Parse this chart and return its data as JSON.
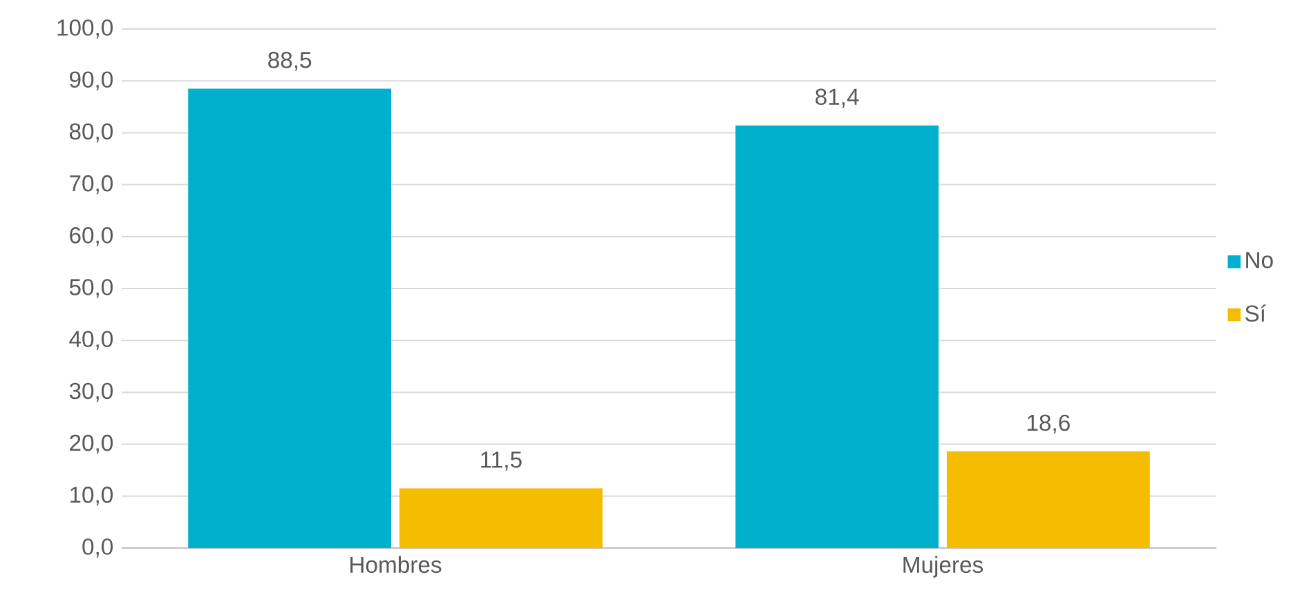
{
  "chart_data": {
    "type": "bar",
    "categories": [
      "Hombres",
      "Mujeres"
    ],
    "series": [
      {
        "name": "No",
        "color": "#00b0cc",
        "values": [
          88.5,
          81.4
        ],
        "value_labels": [
          "88,5",
          "81,4"
        ]
      },
      {
        "name": "Sí",
        "color": "#f5bd00",
        "values": [
          11.5,
          18.6
        ],
        "value_labels": [
          "11,5",
          "18,6"
        ]
      }
    ],
    "ylim": [
      0,
      100
    ],
    "yticks": [
      {
        "value": 0,
        "label": "0,0"
      },
      {
        "value": 10,
        "label": "10,0"
      },
      {
        "value": 20,
        "label": "20,0"
      },
      {
        "value": 30,
        "label": "30,0"
      },
      {
        "value": 40,
        "label": "40,0"
      },
      {
        "value": 50,
        "label": "50,0"
      },
      {
        "value": 60,
        "label": "60,0"
      },
      {
        "value": 70,
        "label": "70,0"
      },
      {
        "value": 80,
        "label": "80,0"
      },
      {
        "value": 90,
        "label": "90,0"
      },
      {
        "value": 100,
        "label": "100,0"
      }
    ],
    "grid": "y",
    "legend": "right"
  }
}
